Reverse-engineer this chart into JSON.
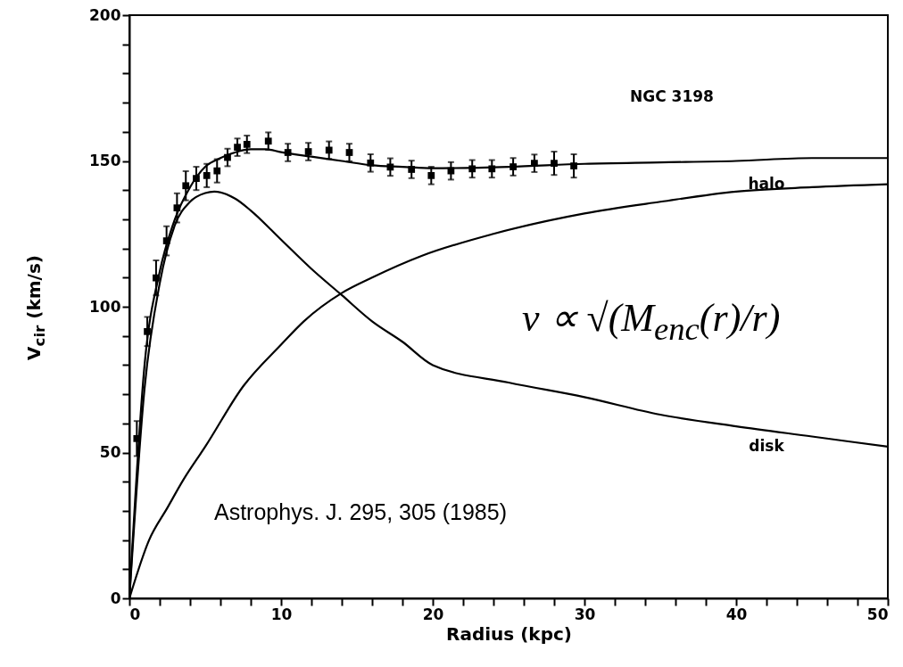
{
  "chart_data": {
    "type": "line",
    "xlabel": "Radius  (kpc)",
    "ylabel": "V$_{cir}$ (km/s)",
    "xlim": [
      0,
      50
    ],
    "ylim": [
      0,
      200
    ],
    "xticks": [
      0,
      {
        "value": 2,
        "label": null
      },
      {
        "value": 4,
        "label": null
      },
      {
        "value": 6,
        "label": null
      },
      {
        "value": 8,
        "label": null
      },
      10,
      {
        "value": 12,
        "label": null
      },
      {
        "value": 14,
        "label": null
      },
      {
        "value": 16,
        "label": null
      },
      {
        "value": 18,
        "label": null
      },
      20,
      {
        "value": 22,
        "label": null
      },
      {
        "value": 24,
        "label": null
      },
      {
        "value": 26,
        "label": null
      },
      {
        "value": 28,
        "label": null
      },
      30,
      {
        "value": 32,
        "label": null
      },
      {
        "value": 34,
        "label": null
      },
      {
        "value": 36,
        "label": null
      },
      {
        "value": 38,
        "label": null
      },
      40,
      {
        "value": 42,
        "label": null
      },
      {
        "value": 44,
        "label": null
      },
      {
        "value": 46,
        "label": null
      },
      {
        "value": 48,
        "label": null
      },
      50
    ],
    "yticks": [
      0,
      {
        "value": 10,
        "label": null
      },
      {
        "value": 20,
        "label": null
      },
      {
        "value": 30,
        "label": null
      },
      {
        "value": 40,
        "label": null
      },
      50,
      {
        "value": 60,
        "label": null
      },
      {
        "value": 70,
        "label": null
      },
      {
        "value": 80,
        "label": null
      },
      {
        "value": 90,
        "label": null
      },
      100,
      {
        "value": 110,
        "label": null
      },
      {
        "value": 120,
        "label": null
      },
      {
        "value": 130,
        "label": null
      },
      {
        "value": 140,
        "label": null
      },
      150,
      {
        "value": 160,
        "label": null
      },
      {
        "value": 170,
        "label": null
      },
      {
        "value": 180,
        "label": null
      },
      {
        "value": 190,
        "label": null
      },
      200
    ],
    "grid": false,
    "line_style": "solid",
    "series": [
      {
        "color": "#000000",
        "x": [
          0,
          1,
          2,
          3,
          4,
          5,
          6,
          7,
          8,
          9,
          10,
          12,
          14,
          16,
          18,
          20,
          25,
          30,
          35,
          40,
          45,
          50
        ],
        "values": [
          0,
          80,
          112,
          130,
          141,
          148,
          151,
          153,
          154,
          154,
          153,
          151.5,
          150,
          148.5,
          148,
          147.5,
          148,
          149,
          149.5,
          150,
          151,
          151
        ]
      },
      {
        "name": "halo",
        "color": "#000000",
        "x": [
          0,
          1.3,
          2.5,
          3.6,
          5,
          7.5,
          10,
          11.5,
          14,
          16,
          19.3,
          24,
          30,
          35,
          40,
          45,
          50
        ],
        "values": [
          0,
          20,
          31,
          41,
          52,
          72.7,
          87,
          95,
          104.7,
          110,
          117.5,
          125,
          132,
          136,
          139.5,
          141,
          142
        ]
      },
      {
        "name": "disk",
        "color": "#000000",
        "x": [
          0,
          1,
          2,
          3,
          4,
          5,
          5.6,
          7,
          8,
          10,
          12,
          14,
          16,
          18,
          20,
          25,
          30,
          35,
          40,
          45,
          50
        ],
        "values": [
          0,
          72,
          108,
          128,
          136,
          139,
          139.5,
          137,
          133,
          123,
          113,
          104,
          95,
          88,
          80,
          74,
          69,
          63,
          59,
          55.5,
          52
        ]
      },
      {
        "type": "scatter",
        "marker": "square",
        "color": "#000000",
        "x": [
          0.49,
          1.18,
          1.76,
          2.45,
          3.14,
          3.72,
          4.41,
          5.1,
          5.78,
          6.47,
          7.12,
          7.75,
          9.16,
          10.45,
          11.8,
          13.16,
          14.5,
          15.9,
          17.2,
          18.6,
          19.9,
          21.2,
          22.6,
          23.9,
          25.3,
          26.7,
          28.0,
          29.3
        ],
        "values": [
          54.8,
          91.5,
          109.9,
          122.6,
          133.9,
          141.5,
          144,
          145,
          146.6,
          151.2,
          154.7,
          155.7,
          156.8,
          152.9,
          153.2,
          153.7,
          152.9,
          149.3,
          147.9,
          147.1,
          145,
          146.6,
          147.3,
          147.3,
          148,
          149.2,
          149.2,
          148.3
        ],
        "errors": [
          6,
          5,
          6,
          5,
          5,
          5,
          4,
          4,
          4,
          3,
          3,
          3,
          3,
          3,
          3,
          3,
          3,
          3,
          3,
          3,
          3,
          3,
          3,
          3,
          3,
          3,
          4,
          4
        ]
      }
    ],
    "annotations": [
      "NGC 3198",
      "v ∝ √(M$_{enc}$(r)/r)",
      "Astrophys. J. 295, 305 (1985)"
    ]
  }
}
